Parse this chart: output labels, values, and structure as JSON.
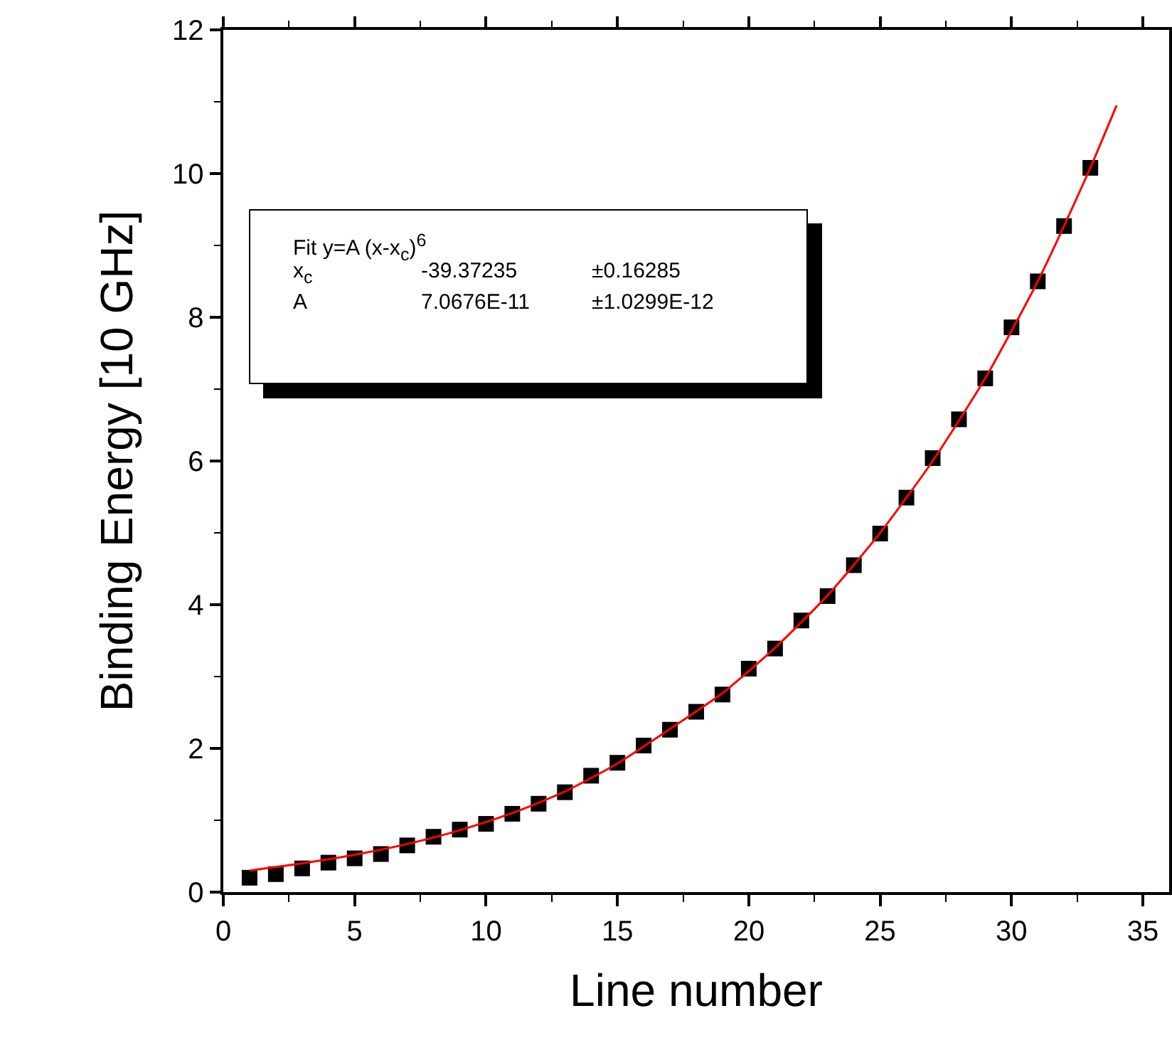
{
  "chart_data": {
    "type": "scatter",
    "xlabel": "Line number",
    "ylabel": "Binding Energy [10 GHz]",
    "xlim": [
      0,
      36
    ],
    "xticks": [
      0,
      5,
      10,
      15,
      20,
      25,
      30,
      35
    ],
    "ylim": [
      0,
      12
    ],
    "yticks": [
      0,
      2,
      4,
      6,
      8,
      10,
      12
    ],
    "grid": false,
    "marker": "square",
    "annotations": [
      "Fit y=A (x-x$_{c}$)$^{6}$",
      "x$_{c}$",
      "-39.37235",
      "±0.16285",
      "A",
      "7.0676E-11",
      "±1.0299E-12"
    ],
    "series": [
      {
        "color": "#000000",
        "x": [
          1,
          2,
          3,
          4,
          5,
          6,
          7,
          8,
          9,
          10,
          11,
          12,
          13,
          14,
          15,
          16,
          17,
          18,
          19,
          20,
          21,
          22,
          23,
          24,
          25,
          26,
          27,
          28,
          29,
          30,
          31,
          32,
          33
        ],
        "values": [
          0.2,
          0.25,
          0.33,
          0.41,
          0.47,
          0.53,
          0.65,
          0.77,
          0.87,
          0.95,
          1.09,
          1.23,
          1.39,
          1.62,
          1.8,
          2.04,
          2.26,
          2.51,
          2.75,
          3.11,
          3.39,
          3.78,
          4.12,
          4.55,
          4.99,
          5.49,
          6.04,
          6.58,
          7.15,
          7.86,
          8.5,
          9.27,
          10.08
        ]
      },
      {
        "type": "line",
        "color": "#ff0000",
        "marker": "none",
        "x": [
          1,
          3,
          5,
          7,
          9,
          11,
          13,
          15,
          17,
          19,
          21,
          23,
          25,
          27,
          29,
          31,
          32,
          33,
          34
        ],
        "values": [
          0.3,
          0.4,
          0.52,
          0.67,
          0.86,
          1.1,
          1.4,
          1.79,
          2.27,
          2.77,
          3.4,
          4.13,
          5.0,
          6.0,
          7.15,
          8.5,
          9.27,
          10.08,
          10.95
        ]
      }
    ]
  }
}
